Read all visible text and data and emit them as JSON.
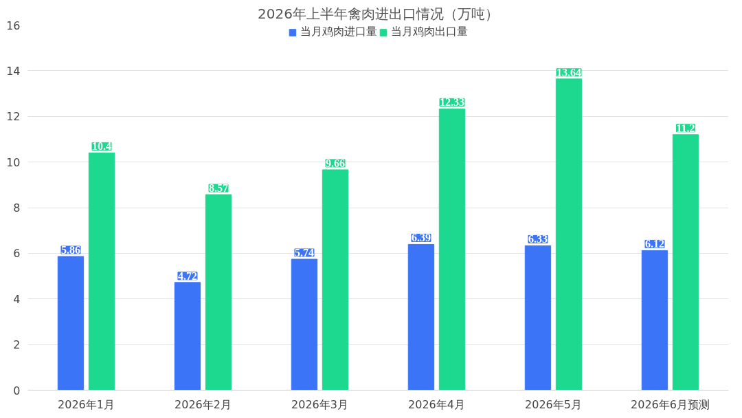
{
  "chart_data": {
    "type": "bar",
    "title": "2026年上半年禽肉进出口情况（万吨）",
    "categories": [
      "2026年1月",
      "2026年2月",
      "2026年3月",
      "2026年4月",
      "2026年5月",
      "2026年6月预测"
    ],
    "series": [
      {
        "name": "当月鸡肉进口量",
        "color": "#3b74f6",
        "values": [
          5.86,
          4.72,
          5.74,
          6.39,
          6.33,
          6.12
        ]
      },
      {
        "name": "当月鸡肉出口量",
        "color": "#1dd88f",
        "values": [
          10.4,
          8.57,
          9.66,
          12.33,
          13.64,
          11.2
        ]
      }
    ],
    "ylim": [
      0,
      16
    ],
    "yticks": [
      0,
      2,
      4,
      6,
      8,
      10,
      12,
      14,
      16
    ],
    "grid": "y",
    "legend": "top",
    "data_labels": true
  }
}
